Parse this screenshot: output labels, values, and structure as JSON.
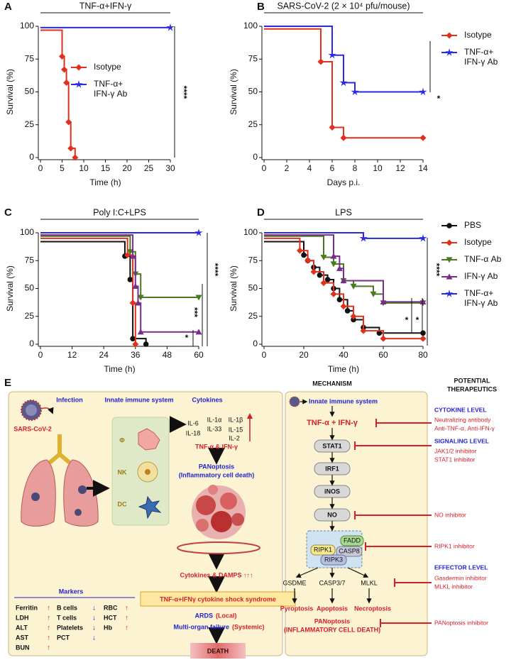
{
  "chart_data": [
    {
      "panel": "A",
      "type": "line",
      "step": true,
      "title": "TNF-α+IFN-γ",
      "xlabel": "Time (h)",
      "ylabel": "Survival (%)",
      "xlim": [
        0,
        30
      ],
      "xticks": [
        0,
        5,
        10,
        15,
        20,
        25,
        30
      ],
      "ylim": [
        0,
        100
      ],
      "yticks": [
        0,
        25,
        50,
        75,
        100
      ],
      "legend": true,
      "series": [
        {
          "name": "Isotype",
          "color": "#e0301e",
          "marker": "diamond",
          "x": [
            0,
            5,
            5.5,
            6,
            6.5,
            7,
            8
          ],
          "values": [
            97,
            77,
            67,
            57,
            27,
            7,
            0
          ]
        },
        {
          "name": "TNF-α+\nIFN-γ Ab",
          "color": "#2a2ae0",
          "marker": "star",
          "x": [
            0,
            30
          ],
          "values": [
            99,
            99
          ]
        }
      ],
      "significance": [
        "****"
      ]
    },
    {
      "panel": "B",
      "type": "line",
      "step": true,
      "title": "SARS-CoV-2 (2 × 10⁴ pfu/mouse)",
      "xlabel": "Days p.i.",
      "ylabel": "Survival (%)",
      "xlim": [
        0,
        14
      ],
      "xticks": [
        0,
        2,
        4,
        6,
        8,
        10,
        12,
        14
      ],
      "ylim": [
        0,
        100
      ],
      "yticks": [
        0,
        25,
        50,
        75,
        100
      ],
      "legend": true,
      "series": [
        {
          "name": "Isotype",
          "color": "#e0301e",
          "marker": "diamond",
          "x": [
            0,
            5,
            6,
            7,
            14
          ],
          "values": [
            98,
            73,
            23,
            15,
            15
          ]
        },
        {
          "name": "TNF-α+\nIFN-γ Ab",
          "color": "#2a2ae0",
          "marker": "star",
          "x": [
            0,
            6,
            7,
            8,
            14
          ],
          "values": [
            100,
            78,
            57,
            50,
            50
          ]
        }
      ],
      "significance": [
        "*"
      ]
    },
    {
      "panel": "C",
      "type": "line",
      "step": true,
      "title": "Poly I:C+LPS",
      "xlabel": "Time (h)",
      "ylabel": "Survival (%)",
      "xlim": [
        0,
        60
      ],
      "xticks": [
        0,
        12,
        24,
        36,
        48,
        60
      ],
      "ylim": [
        0,
        100
      ],
      "yticks": [
        0,
        25,
        50,
        75,
        100
      ],
      "legend": false,
      "series": [
        {
          "color": "#111111",
          "marker": "circle",
          "x": [
            0,
            32,
            34,
            35,
            40
          ],
          "values": [
            92,
            79,
            58,
            5,
            0
          ]
        },
        {
          "color": "#e0301e",
          "marker": "diamond",
          "x": [
            0,
            33,
            35,
            36
          ],
          "values": [
            95,
            80,
            37,
            0
          ]
        },
        {
          "color": "#4a7a1e",
          "marker": "tridown",
          "x": [
            0,
            34,
            36,
            38,
            60
          ],
          "values": [
            97,
            83,
            63,
            42,
            42
          ]
        },
        {
          "color": "#7b2d8e",
          "marker": "triup",
          "x": [
            0,
            35,
            36,
            37,
            38,
            60
          ],
          "values": [
            98,
            79,
            52,
            37,
            11,
            11
          ]
        },
        {
          "color": "#2a2ae0",
          "marker": "star",
          "x": [
            0,
            60
          ],
          "values": [
            100,
            100
          ]
        }
      ],
      "significance": [
        "****",
        "***",
        "*"
      ]
    },
    {
      "panel": "D",
      "type": "line",
      "step": true,
      "title": "LPS",
      "xlabel": "Time (h)",
      "ylabel": "Survival (%)",
      "xlim": [
        0,
        80
      ],
      "xticks": [
        0,
        20,
        40,
        60,
        80
      ],
      "ylim": [
        0,
        100
      ],
      "yticks": [
        0,
        25,
        50,
        75,
        100
      ],
      "legend": true,
      "series": [
        {
          "name": "PBS",
          "color": "#111111",
          "marker": "circle",
          "x": [
            0,
            20,
            22,
            25,
            28,
            32,
            35,
            38,
            42,
            45,
            50,
            58,
            80
          ],
          "values": [
            92,
            80,
            75,
            69,
            62,
            58,
            50,
            40,
            30,
            22,
            15,
            10,
            10
          ]
        },
        {
          "name": "Isotype",
          "color": "#e0301e",
          "marker": "diamond",
          "x": [
            0,
            18,
            22,
            25,
            30,
            35,
            40,
            45,
            50,
            60,
            80
          ],
          "values": [
            95,
            84,
            75,
            65,
            55,
            45,
            34,
            25,
            12,
            5,
            5
          ]
        },
        {
          "name": "TNF-α Ab",
          "color": "#4a7a1e",
          "marker": "tridown",
          "x": [
            0,
            30,
            35,
            40,
            45,
            55,
            60,
            80
          ],
          "values": [
            97,
            78,
            72,
            57,
            52,
            45,
            37,
            37
          ]
        },
        {
          "name": "IFN-γ Ab",
          "color": "#7b2d8e",
          "marker": "triup",
          "x": [
            0,
            35,
            38,
            40,
            60,
            80
          ],
          "values": [
            98,
            79,
            68,
            57,
            38,
            38
          ]
        },
        {
          "name": "TNF-α+\nIFN-γ Ab",
          "color": "#2a2ae0",
          "marker": "star",
          "x": [
            0,
            50,
            80
          ],
          "values": [
            100,
            95,
            95
          ]
        }
      ],
      "significance": [
        "****",
        "*",
        "*"
      ]
    }
  ],
  "diagram": {
    "panel": "E",
    "headers": {
      "infection": "Infection",
      "innate": "Innate immune system",
      "cytokines": "Cytokines",
      "mechanism": "MECHANISM",
      "therapeutics": [
        "POTENTIAL",
        "THERAPEUTICS"
      ]
    },
    "virus": "SARS-CoV-2",
    "cells": [
      "Φ",
      "NK",
      "DC"
    ],
    "cytokine_list": [
      "IL-6",
      "IL-1α",
      "IL-1β",
      "IL-18",
      "IL-33",
      "IL-15",
      "IL-2"
    ],
    "flow": [
      "TNF-α & IFN-γ",
      "PANoptosis",
      "(Inflammatory cell death)",
      "Cytokines & DAMPS ↑↑↑",
      "TNF-α+IFNγ cytokine shock syndrome"
    ],
    "outcomes": [
      {
        "a": "ARDS",
        "b": "(Local)"
      },
      {
        "a": "Multi-organ failure",
        "b": "(Systemic)"
      }
    ],
    "death": "DEATH",
    "markers": {
      "title": "Markers",
      "columns": [
        {
          "color": "#e0301e",
          "items": [
            {
              "name": "Ferritin",
              "change": "↑"
            },
            {
              "name": "LDH",
              "change": "↑"
            },
            {
              "name": "ALT",
              "change": "↑"
            },
            {
              "name": "AST",
              "change": "↑"
            },
            {
              "name": "BUN",
              "change": "↑"
            }
          ]
        },
        {
          "color": "#2a2ae0",
          "items": [
            {
              "name": "B cells",
              "change": "↓"
            },
            {
              "name": "T cells",
              "change": "↓"
            },
            {
              "name": "Platelets",
              "change": "↓"
            },
            {
              "name": "PCT",
              "change": "↓"
            }
          ]
        },
        {
          "color": "#e0301e",
          "items": [
            {
              "name": "RBC",
              "change": "↑"
            },
            {
              "name": "HCT",
              "change": "↑"
            },
            {
              "name": "Hb",
              "change": "↑"
            }
          ]
        }
      ]
    },
    "mechanism": {
      "start": "Innate immune system",
      "cytokines": "TNF-α + IFN-γ",
      "nodes": [
        "STAT1",
        "IRF1",
        "iNOS",
        "NO"
      ],
      "complex": [
        "FADD",
        "RIPK1",
        "CASP8",
        "RIPK3"
      ],
      "effectors": [
        "GSDME",
        "CASP3/7",
        "MLKL"
      ],
      "deaths": [
        "Pyroptosis",
        "Apoptosis",
        "Necroptosis"
      ],
      "panoptosis": [
        "PANoptosis",
        "(INFLAMMATORY CELL DEATH)"
      ]
    },
    "therapeutics": [
      {
        "level": "CYTOKINE LEVEL",
        "items": [
          "Neutralizing antibody",
          "Anti-TNF-α, Anti-IFN-γ"
        ]
      },
      {
        "level": "SIGNALING LEVEL",
        "items": [
          "JAK1/2 inhibitor",
          "STAT1 inhibitor"
        ]
      },
      {
        "items": [
          "NO inhibitor"
        ]
      },
      {
        "items": [
          "RIPK1 inhibitor"
        ]
      },
      {
        "level": "EFFECTOR LEVEL",
        "items": [
          "Gasdermin inhibitor",
          "MLKL inhibitor"
        ]
      },
      {
        "items": [
          "PANoptosis inhibitor"
        ]
      }
    ]
  }
}
